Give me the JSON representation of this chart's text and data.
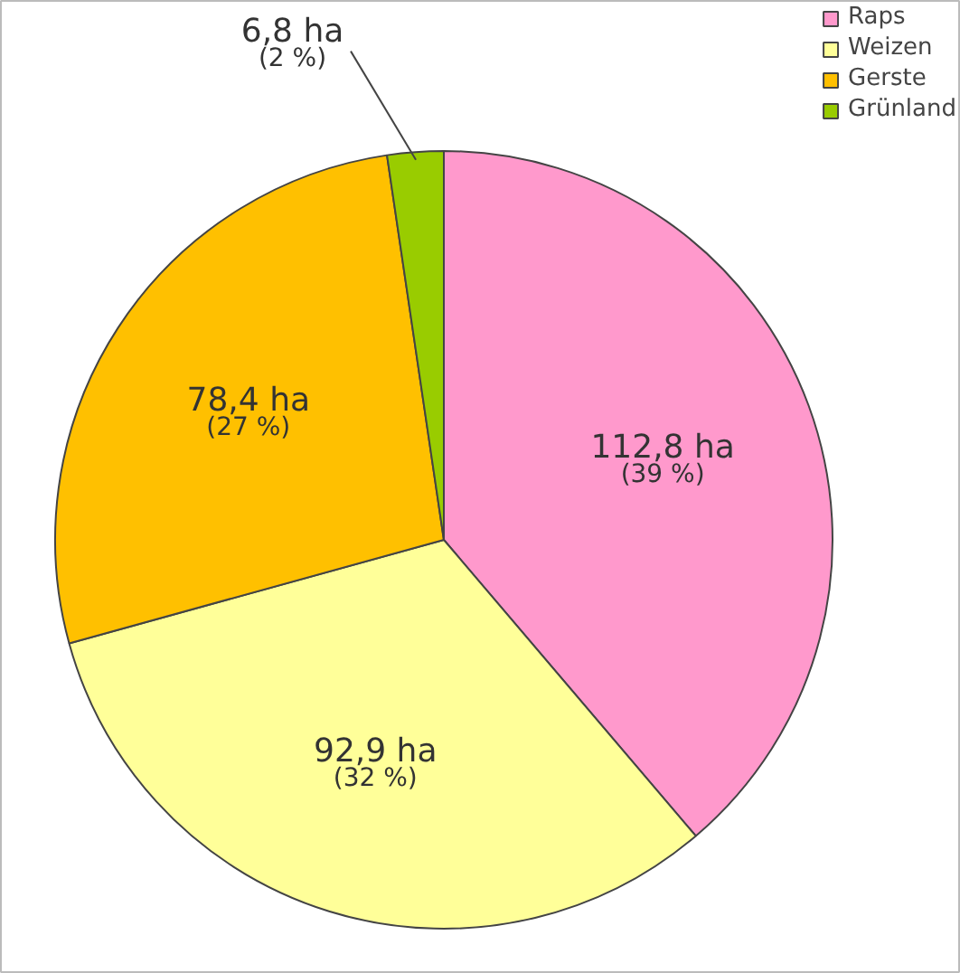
{
  "chart_data": {
    "type": "pie",
    "categories": [
      "Raps",
      "Weizen",
      "Gerste",
      "Grünland"
    ],
    "values": [
      112.8,
      92.9,
      78.4,
      6.8
    ],
    "colors": [
      "#ff99cc",
      "#ffff99",
      "#ffc000",
      "#99cc00"
    ],
    "value_labels": [
      "112,8 ha\n(39 %)",
      "92,9 ha\n(32 %)",
      "78,4 ha\n(27 %)",
      "6,8 ha\n(2 %)"
    ],
    "legend": "top right"
  }
}
